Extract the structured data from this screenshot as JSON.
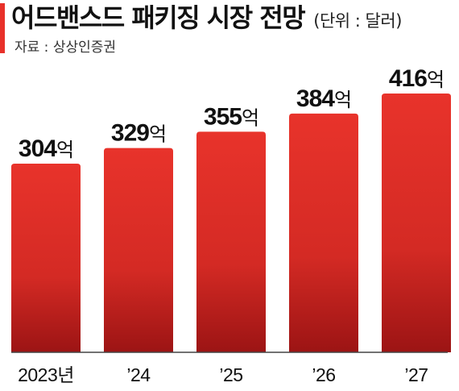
{
  "header": {
    "title": "어드밴스드 패키징 시장 전망",
    "unit": "(단위 : 달러)",
    "source": "자료 : 상상인증권"
  },
  "chart_data": {
    "type": "bar",
    "title": "어드밴스드 패키징 시장 전망",
    "categories": [
      "2023년",
      "’24",
      "’25",
      "’26",
      "’27"
    ],
    "values": [
      304,
      329,
      355,
      384,
      416
    ],
    "value_suffix": "억",
    "ylim": [
      0,
      416
    ],
    "colors": {
      "bar_top": "#e8332b",
      "bar_bottom": "#9c1414",
      "baseline": "#444444"
    },
    "grid": false,
    "legend": "none"
  }
}
